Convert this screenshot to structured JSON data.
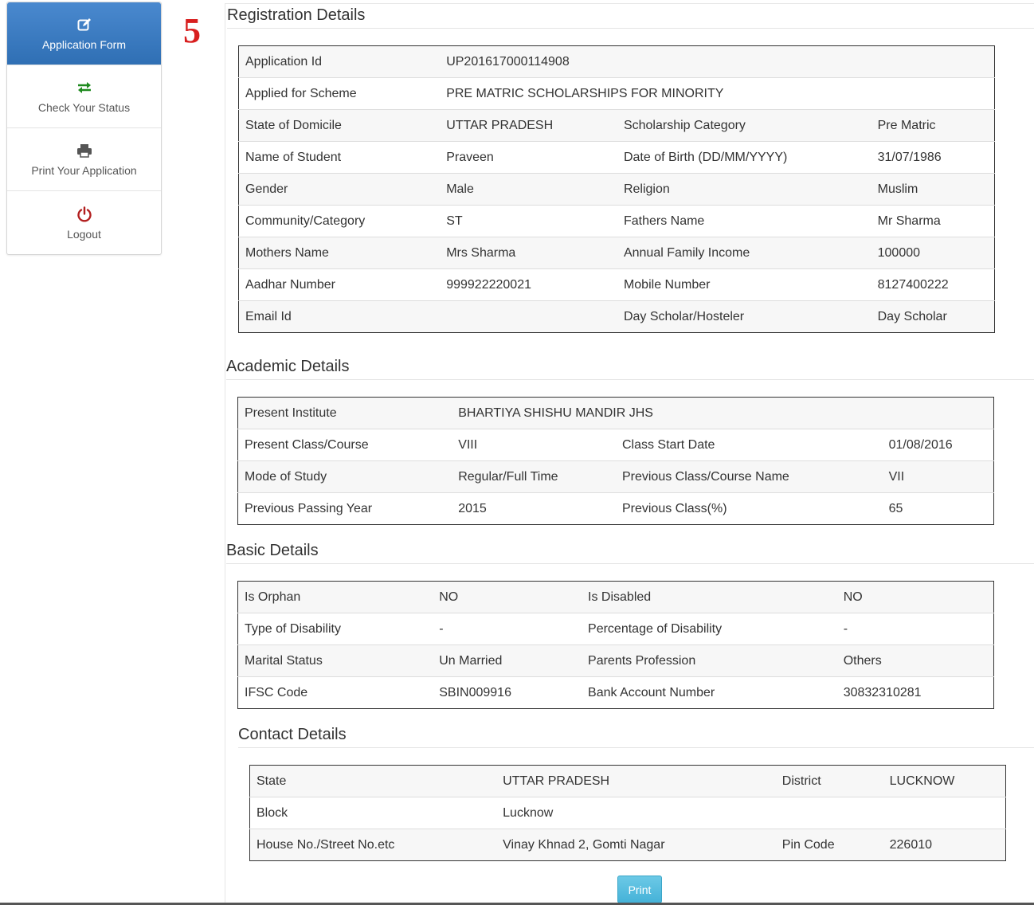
{
  "sidebar": {
    "items": [
      {
        "label": "Application Form",
        "icon": "edit-icon"
      },
      {
        "label": "Check Your Status",
        "icon": "transfer-icon"
      },
      {
        "label": "Print Your Application",
        "icon": "printer-icon"
      },
      {
        "label": "Logout",
        "icon": "power-icon"
      }
    ]
  },
  "step_number": "5",
  "registration": {
    "title": "Registration Details",
    "rows": [
      [
        "Application Id",
        "UP201617000114908",
        "",
        ""
      ],
      [
        "Applied for Scheme",
        "PRE MATRIC SCHOLARSHIPS FOR MINORITY",
        "",
        ""
      ],
      [
        "State of Domicile",
        "UTTAR PRADESH",
        "Scholarship Category",
        "Pre Matric"
      ],
      [
        "Name of Student",
        "Praveen",
        "Date of Birth (DD/MM/YYYY)",
        "31/07/1986"
      ],
      [
        "Gender",
        "Male",
        "Religion",
        "Muslim"
      ],
      [
        "Community/Category",
        "ST",
        "Fathers Name",
        "Mr Sharma"
      ],
      [
        "Mothers Name",
        "Mrs Sharma",
        "Annual Family Income",
        "100000"
      ],
      [
        "Aadhar Number",
        "999922220021",
        "Mobile Number",
        "8127400222"
      ],
      [
        "Email Id",
        "",
        "Day Scholar/Hosteler",
        "Day Scholar"
      ]
    ]
  },
  "academic": {
    "title": "Academic Details",
    "rows": [
      [
        "Present Institute",
        "BHARTIYA SHISHU MANDIR JHS",
        "",
        ""
      ],
      [
        "Present Class/Course",
        "VIII",
        "Class Start Date",
        "01/08/2016"
      ],
      [
        "Mode of Study",
        "Regular/Full Time",
        "Previous Class/Course Name",
        "VII"
      ],
      [
        "Previous Passing Year",
        "2015",
        "Previous Class(%)",
        "65"
      ]
    ]
  },
  "basic": {
    "title": "Basic Details",
    "rows": [
      [
        "Is Orphan",
        "NO",
        "Is Disabled",
        "NO"
      ],
      [
        "Type of Disability",
        "-",
        "Percentage of Disability",
        "-"
      ],
      [
        "Marital Status",
        "Un Married",
        "Parents Profession",
        "Others"
      ],
      [
        "IFSC Code",
        "SBIN009916",
        "Bank Account Number",
        "30832310281"
      ]
    ]
  },
  "contact": {
    "title": "Contact Details",
    "rows": [
      [
        "State",
        "UTTAR PRADESH",
        "District",
        "LUCKNOW"
      ],
      [
        "Block",
        "Lucknow",
        "",
        ""
      ],
      [
        "House No./Street No.etc",
        "Vinay Khnad 2, Gomti Nagar",
        "Pin Code",
        "226010"
      ]
    ]
  },
  "print_label": "Print",
  "colors": {
    "active_nav": "#3d7bc0",
    "step_number": "#d81f1f",
    "print_button": "#5bc0de"
  }
}
